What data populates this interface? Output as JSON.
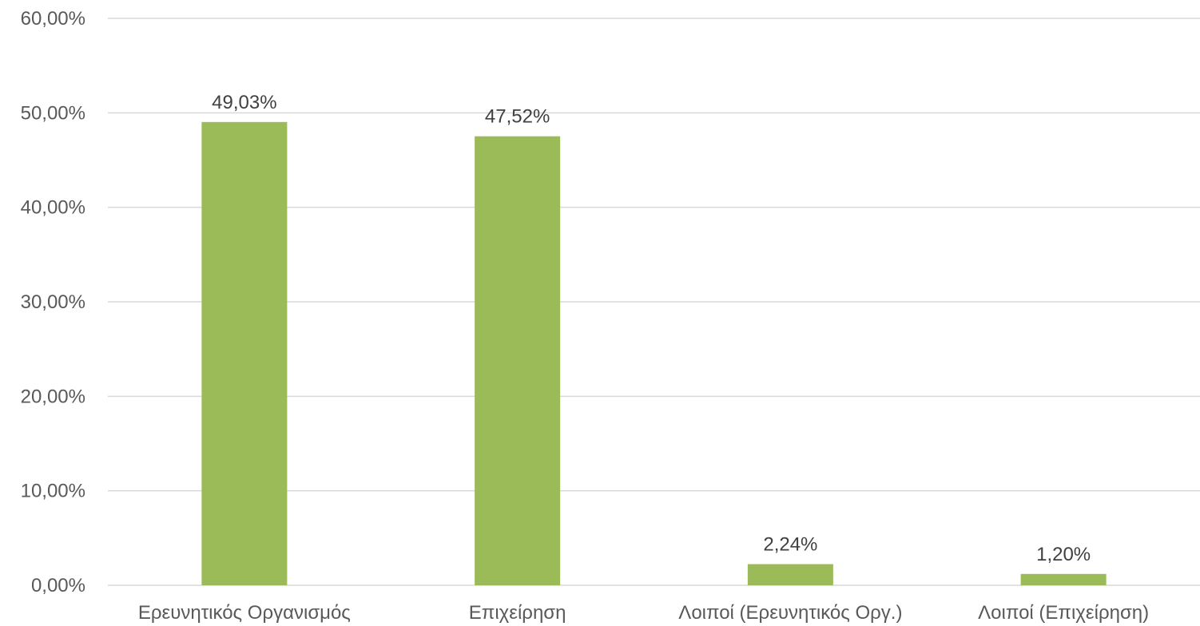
{
  "chart_data": {
    "type": "bar",
    "title": "",
    "xlabel": "",
    "ylabel": "",
    "categories": [
      "Ερευνητικός Οργανισμός",
      "Επιχείρηση",
      "Λοιποί (Ερευνητικός Οργ.)",
      "Λοιποί (Επιχείρηση)"
    ],
    "values": [
      49.03,
      47.52,
      2.24,
      1.2
    ],
    "data_labels": [
      "49,03%",
      "47,52%",
      "2,24%",
      "1,20%"
    ],
    "ylim": [
      0,
      60
    ],
    "yticks": [
      0,
      10,
      20,
      30,
      40,
      50,
      60
    ],
    "ytick_labels": [
      "0,00%",
      "10,00%",
      "20,00%",
      "30,00%",
      "40,00%",
      "50,00%",
      "60,00%"
    ],
    "grid": true,
    "legend": "none",
    "bar_color": "#9bbb59"
  }
}
